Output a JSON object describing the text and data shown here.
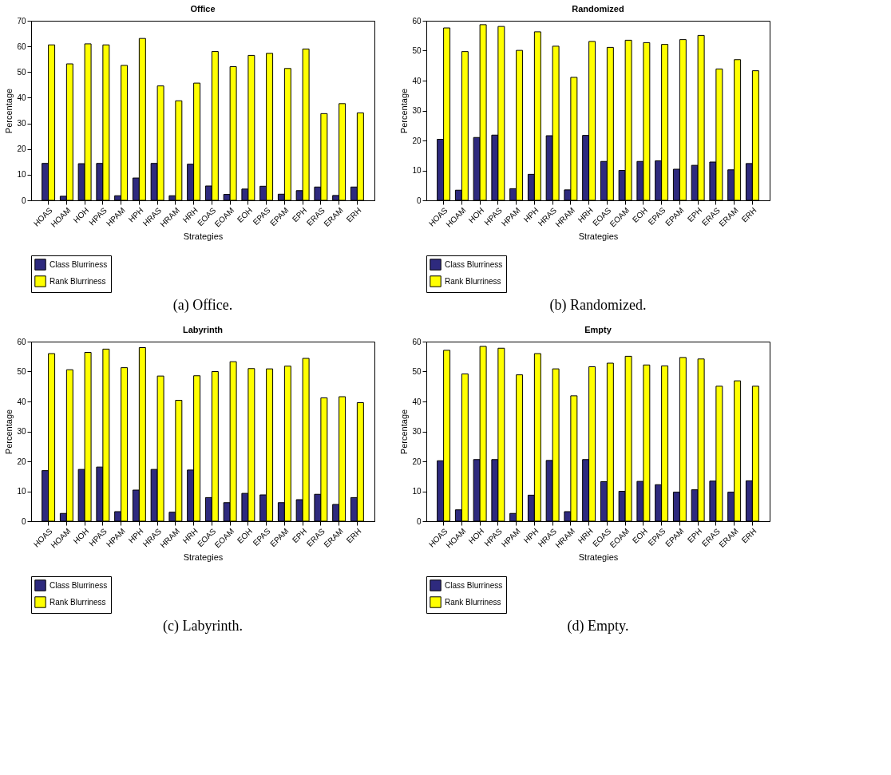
{
  "chart_data": [
    {
      "type": "bar",
      "title": "Office",
      "xlabel": "Strategies",
      "ylabel": "Percentage",
      "categories": [
        "HOAS",
        "HOAM",
        "HOH",
        "HPAS",
        "HPAM",
        "HPH",
        "HRAS",
        "HRAM",
        "HRH",
        "EOAS",
        "EOAM",
        "EOH",
        "EPAS",
        "EPAM",
        "EPH",
        "ERAS",
        "ERAM",
        "ERH"
      ],
      "series": [
        {
          "name": "Class Blurriness",
          "color": "#2e2a7e",
          "values": [
            14.4,
            1.6,
            14.3,
            14.4,
            1.8,
            8.7,
            14.4,
            1.8,
            14.1,
            5.6,
            2.3,
            4.4,
            5.5,
            2.4,
            3.8,
            5.2,
            1.9,
            5.2
          ]
        },
        {
          "name": "Rank Blurriness",
          "color": "#ffff00",
          "values": [
            60.6,
            53.2,
            61.0,
            60.6,
            52.6,
            63.1,
            44.6,
            38.8,
            45.7,
            58.0,
            52.1,
            56.5,
            57.3,
            51.4,
            59.0,
            33.8,
            37.7,
            34.1
          ]
        }
      ],
      "ylim": [
        0,
        70
      ],
      "yticks": [
        0,
        10,
        20,
        30,
        40,
        50,
        60,
        70
      ],
      "grid": false,
      "legend": "bottom",
      "annotations": [
        "(a) Office."
      ]
    },
    {
      "type": "bar",
      "title": "Randomized",
      "xlabel": "Strategies",
      "ylabel": "Percentage",
      "categories": [
        "HOAS",
        "HOAM",
        "HOH",
        "HPAS",
        "HPAM",
        "HPH",
        "HRAS",
        "HRAM",
        "HRH",
        "EOAS",
        "EOAM",
        "EOH",
        "EPAS",
        "EPAM",
        "EPH",
        "ERAS",
        "ERAM",
        "ERH"
      ],
      "series": [
        {
          "name": "Class Blurriness",
          "color": "#2e2a7e",
          "values": [
            20.4,
            3.4,
            21.0,
            21.8,
            3.9,
            8.7,
            21.6,
            3.5,
            21.7,
            13.0,
            10.0,
            13.0,
            13.2,
            10.4,
            11.7,
            12.8,
            10.2,
            12.3
          ]
        },
        {
          "name": "Rank Blurriness",
          "color": "#ffff00",
          "values": [
            57.6,
            49.7,
            58.7,
            58.1,
            50.1,
            56.3,
            51.5,
            41.1,
            53.1,
            51.1,
            53.5,
            52.7,
            52.1,
            53.7,
            55.1,
            43.9,
            47.0,
            43.3
          ]
        }
      ],
      "ylim": [
        0,
        60
      ],
      "yticks": [
        0,
        10,
        20,
        30,
        40,
        50,
        60
      ],
      "grid": false,
      "legend": "bottom",
      "annotations": [
        "(b) Randomized."
      ]
    },
    {
      "type": "bar",
      "title": "Labyrinth",
      "xlabel": "Strategies",
      "ylabel": "Percentage",
      "categories": [
        "HOAS",
        "HOAM",
        "HOH",
        "HPAS",
        "HPAM",
        "HPH",
        "HRAS",
        "HRAM",
        "HRH",
        "EOAS",
        "EOAM",
        "EOH",
        "EPAS",
        "EPAM",
        "EPH",
        "ERAS",
        "ERAM",
        "ERH"
      ],
      "series": [
        {
          "name": "Class Blurriness",
          "color": "#2e2a7e",
          "values": [
            16.9,
            2.6,
            17.3,
            18.1,
            3.2,
            10.4,
            17.3,
            3.0,
            17.1,
            7.9,
            6.2,
            9.3,
            8.8,
            6.2,
            7.2,
            9.0,
            5.6,
            7.9
          ]
        },
        {
          "name": "Rank Blurriness",
          "color": "#ffff00",
          "values": [
            56.0,
            50.6,
            56.4,
            57.5,
            51.3,
            58.0,
            48.5,
            40.4,
            48.6,
            50.0,
            53.3,
            51.0,
            50.9,
            51.8,
            54.4,
            41.2,
            41.6,
            39.6
          ]
        }
      ],
      "ylim": [
        0,
        60
      ],
      "yticks": [
        0,
        10,
        20,
        30,
        40,
        50,
        60
      ],
      "grid": false,
      "legend": "bottom",
      "annotations": [
        "(c) Labyrinth."
      ]
    },
    {
      "type": "bar",
      "title": "Empty",
      "xlabel": "Strategies",
      "ylabel": "Percentage",
      "categories": [
        "HOAS",
        "HOAM",
        "HOH",
        "HPAS",
        "HPAM",
        "HPH",
        "HRAS",
        "HRAM",
        "HRH",
        "EOAS",
        "EOAM",
        "EOH",
        "EPAS",
        "EPAM",
        "EPH",
        "ERAS",
        "ERAM",
        "ERH"
      ],
      "series": [
        {
          "name": "Class Blurriness",
          "color": "#2e2a7e",
          "values": [
            20.2,
            3.8,
            20.6,
            20.6,
            2.6,
            8.7,
            20.3,
            3.2,
            20.6,
            13.2,
            10.0,
            13.3,
            12.2,
            9.7,
            10.5,
            13.4,
            9.7,
            13.5
          ]
        },
        {
          "name": "Rank Blurriness",
          "color": "#ffff00",
          "values": [
            57.1,
            49.2,
            58.4,
            57.8,
            48.9,
            56.0,
            50.9,
            41.9,
            51.6,
            52.8,
            55.1,
            52.2,
            51.9,
            54.7,
            54.2,
            45.1,
            46.9,
            45.1
          ]
        }
      ],
      "ylim": [
        0,
        60
      ],
      "yticks": [
        0,
        10,
        20,
        30,
        40,
        50,
        60
      ],
      "grid": false,
      "legend": "bottom",
      "annotations": [
        "(d) Empty."
      ]
    }
  ]
}
